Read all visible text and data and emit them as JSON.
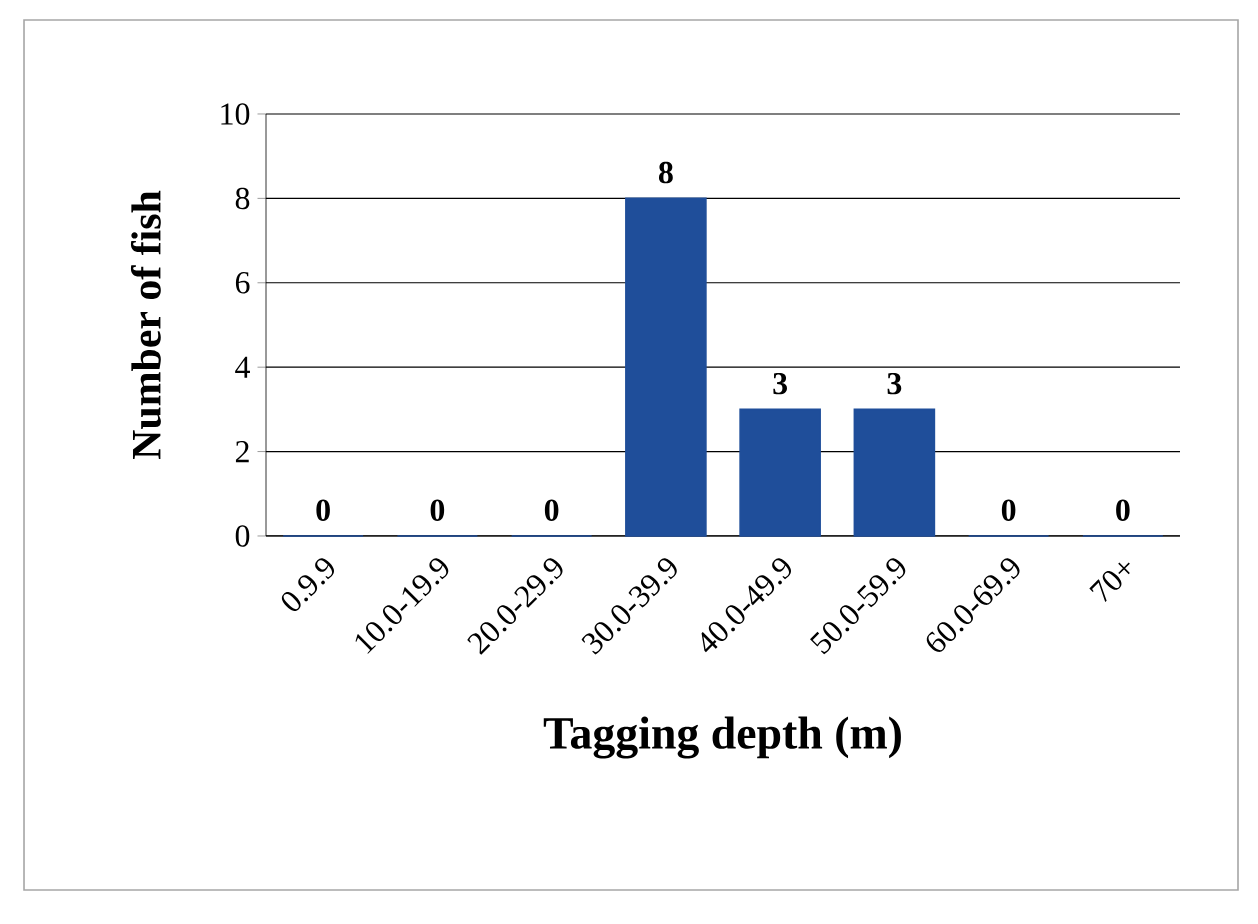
{
  "chart_data": {
    "type": "bar",
    "xlabel": "Tagging depth (m)",
    "ylabel": "Number of fish",
    "categories": [
      "0.9.9",
      "10.0-19.9",
      "20.0-29.9",
      "30.0-39.9",
      "40.0-49.9",
      "50.0-59.9",
      "60.0-69.9",
      "70+"
    ],
    "values": [
      0,
      0,
      0,
      8,
      3,
      3,
      0,
      0
    ],
    "color": "#1f4e9a",
    "ylim": [
      0,
      10
    ],
    "yticks": [
      0,
      2,
      4,
      6,
      8,
      10
    ],
    "grid": "y",
    "data_labels": true
  }
}
